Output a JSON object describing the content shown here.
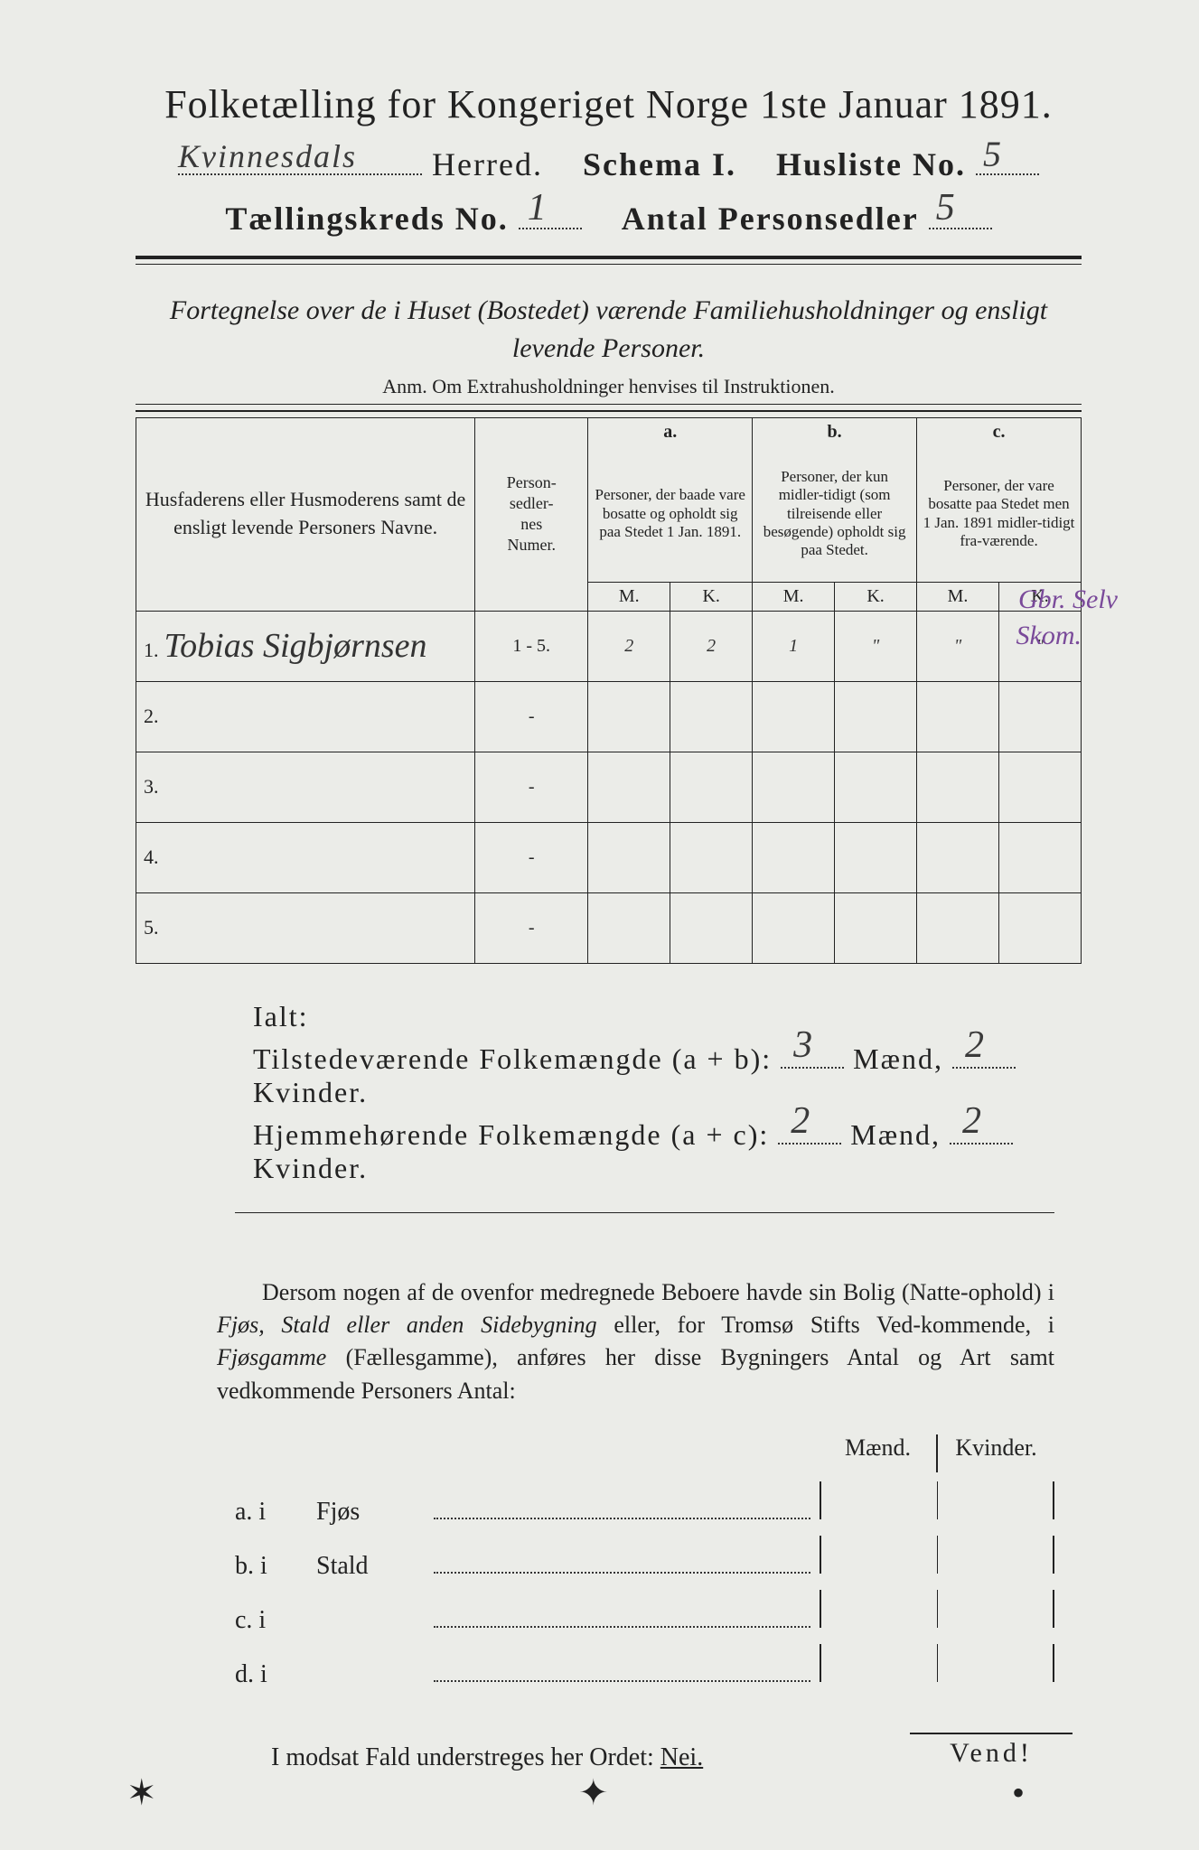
{
  "title": "Folketælling for Kongeriget Norge 1ste Januar 1891.",
  "line2": {
    "herred_hand": "Kvinnesdals",
    "herred_label": "Herred.",
    "schema_label": "Schema I.",
    "husliste_label": "Husliste No.",
    "husliste_hand": "5"
  },
  "line3": {
    "kreds_label": "Tællingskreds No.",
    "kreds_hand": "1",
    "antal_label": "Antal Personsedler",
    "antal_hand": "5"
  },
  "subtitle": "Fortegnelse over de i Huset (Bostedet) værende Familiehusholdninger og ensligt levende Personer.",
  "anm": "Anm.  Om Extrahusholdninger henvises til Instruktionen.",
  "table": {
    "col_name": "Husfaderens eller Husmoderens samt de ensligt levende Personers Navne.",
    "col_num": "Person-\nsedler-\nnes\nNumer.",
    "col_a_top": "a.",
    "col_a": "Personer, der baade vare bosatte og opholdt sig paa Stedet 1 Jan. 1891.",
    "col_b_top": "b.",
    "col_b": "Personer, der kun midler-tidigt (som tilreisende eller besøgende) opholdt sig paa Stedet.",
    "col_c_top": "c.",
    "col_c": "Personer, der vare bosatte paa Stedet men 1 Jan. 1891 midler-tidigt fra-værende.",
    "m": "M.",
    "k": "K.",
    "rows": [
      {
        "n": "1.",
        "name_hand": "Tobias Sigbjørnsen",
        "num": "1 - 5.",
        "a_m": "2",
        "a_k": "2",
        "b_m": "1",
        "b_k": "\"",
        "c_m": "\"",
        "c_k": "\""
      },
      {
        "n": "2.",
        "name_hand": "",
        "num": "-",
        "a_m": "",
        "a_k": "",
        "b_m": "",
        "b_k": "",
        "c_m": "",
        "c_k": ""
      },
      {
        "n": "3.",
        "name_hand": "",
        "num": "-",
        "a_m": "",
        "a_k": "",
        "b_m": "",
        "b_k": "",
        "c_m": "",
        "c_k": ""
      },
      {
        "n": "4.",
        "name_hand": "",
        "num": "-",
        "a_m": "",
        "a_k": "",
        "b_m": "",
        "b_k": "",
        "c_m": "",
        "c_k": ""
      },
      {
        "n": "5.",
        "name_hand": "",
        "num": "-",
        "a_m": "",
        "a_k": "",
        "b_m": "",
        "b_k": "",
        "c_m": "",
        "c_k": ""
      }
    ],
    "margin1": "Gbr. Selv",
    "margin2": "Skom."
  },
  "ialt": {
    "label": "Ialt:",
    "line1_a": "Tilstedeværende Folkemængde (a + b):",
    "line1_m": "3",
    "line1_k": "2",
    "line2_a": "Hjemmehørende Folkemængde (a + c):",
    "line2_m": "2",
    "line2_k": "2",
    "maend": "Mænd,",
    "kvinder": "Kvinder."
  },
  "para": "Dersom nogen af de ovenfor medregnede Beboere havde sin Bolig (Natte-ophold) i Fjøs, Stald eller anden Sidebygning eller, for Tromsø Stifts Ved-kommende, i Fjøsgamme (Fællesgamme), anføres her disse Bygningers Antal og Art samt vedkommende Personers Antal:",
  "fjos": {
    "hdr_m": "Mænd.",
    "hdr_k": "Kvinder.",
    "rows": [
      {
        "l": "a.  i",
        "n": "Fjøs"
      },
      {
        "l": "b.  i",
        "n": "Stald"
      },
      {
        "l": "c.  i",
        "n": ""
      },
      {
        "l": "d.  i",
        "n": ""
      }
    ]
  },
  "modsat": "I modsat Fald understreges her Ordet:",
  "nei": "Nei.",
  "vend": "Vend!",
  "colors": {
    "bg": "#ebece8",
    "ink": "#222222",
    "hand": "#3a3a3a",
    "purple": "#6b4a8a"
  }
}
